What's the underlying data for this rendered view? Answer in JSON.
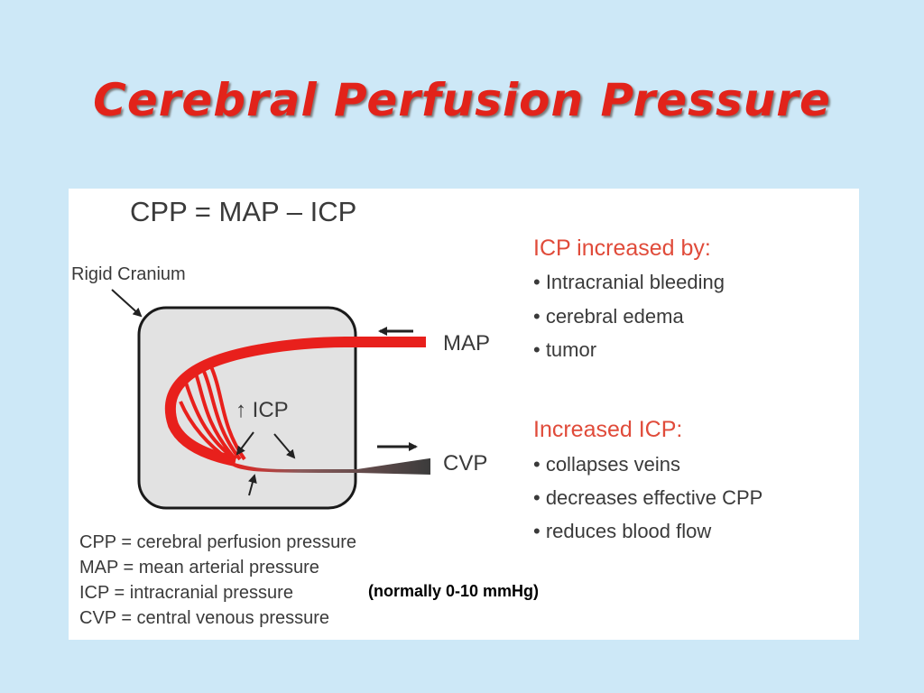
{
  "title": "Cerebral Perfusion Pressure",
  "diagram": {
    "formula": "CPP = MAP – ICP",
    "rigid_cranium_label": "Rigid Cranium",
    "map_label": "MAP",
    "cvp_label": "CVP",
    "icp_label": "↑ ICP"
  },
  "icp_increased_by": {
    "heading": "ICP increased by:",
    "items": [
      "• Intracranial bleeding",
      "• cerebral edema",
      "• tumor"
    ]
  },
  "increased_icp": {
    "heading": "Increased ICP:",
    "items": [
      "• collapses veins",
      "• decreases effective CPP",
      "• reduces blood flow"
    ]
  },
  "legend": {
    "cpp": "CPP   =  cerebral perfusion pressure",
    "map": "MAP  =  mean arterial pressure",
    "icp": "ICP    =  intracranial pressure",
    "cvp": "CVP   =  central venous pressure",
    "icp_normal": "(normally 0-10 mmHg)"
  },
  "colors": {
    "title": "#e2231a",
    "background": "#cde8f7",
    "artery": "#e8201c",
    "vein": "#3c3c3c",
    "cranium_fill": "#e2e2e2",
    "heading_red": "#e04b3a"
  }
}
